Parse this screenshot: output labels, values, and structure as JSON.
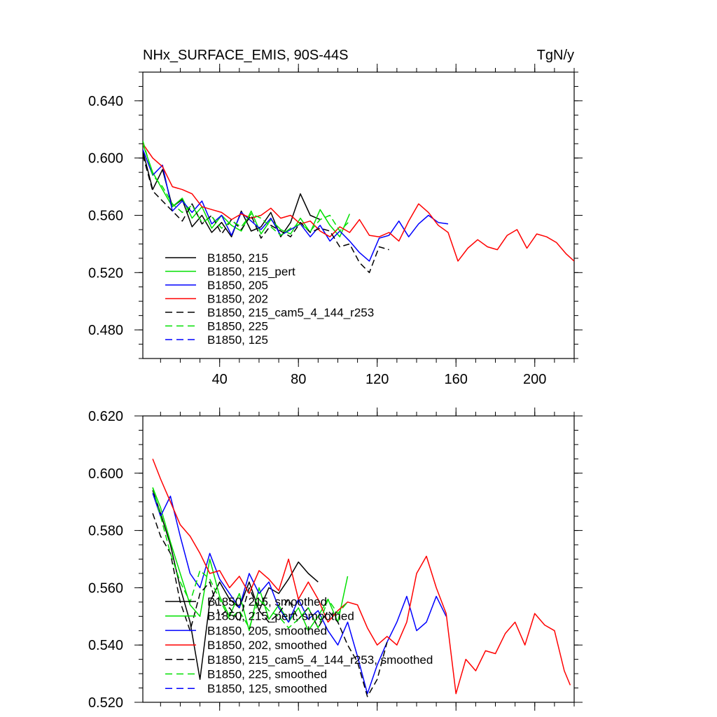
{
  "chart_data": [
    {
      "type": "line",
      "title": "NHx_SURFACE_EMIS, 90S-44S",
      "units": "TgN/y",
      "xlabel": "",
      "ylabel": "",
      "xlim": [
        1,
        220
      ],
      "ylim": [
        0.46,
        0.66
      ],
      "xticks": [
        40,
        80,
        120,
        160,
        200
      ],
      "xtick_labels": [
        "40",
        "80",
        "120",
        "160",
        "200"
      ],
      "yticks": [
        0.48,
        0.52,
        0.56,
        0.6,
        0.64
      ],
      "ytick_labels": [
        "0.480",
        "0.520",
        "0.560",
        "0.600",
        "0.640"
      ],
      "legend_position": "bottom-left",
      "series": [
        {
          "name": "B1850, 215",
          "color": "#000000",
          "dash": "solid",
          "x": [
            1,
            6,
            11,
            16,
            21,
            26,
            31,
            36,
            41,
            46,
            51,
            56,
            61,
            66,
            71,
            76,
            81,
            86,
            91
          ],
          "values": [
            0.605,
            0.578,
            0.592,
            0.566,
            0.571,
            0.552,
            0.56,
            0.548,
            0.555,
            0.545,
            0.563,
            0.549,
            0.552,
            0.562,
            0.545,
            0.555,
            0.575,
            0.56,
            0.557
          ]
        },
        {
          "name": "B1850, 215_pert",
          "color": "#00e000",
          "dash": "solid",
          "x": [
            1,
            6,
            11,
            16,
            21,
            26,
            31,
            36,
            41,
            46,
            51,
            56,
            61,
            66,
            71,
            76,
            81,
            86,
            91,
            96,
            101,
            106
          ],
          "values": [
            0.61,
            0.59,
            0.578,
            0.566,
            0.572,
            0.558,
            0.566,
            0.551,
            0.56,
            0.553,
            0.549,
            0.563,
            0.547,
            0.557,
            0.55,
            0.547,
            0.558,
            0.548,
            0.564,
            0.553,
            0.545,
            0.561
          ]
        },
        {
          "name": "B1850, 205",
          "color": "#0000ff",
          "dash": "solid",
          "x": [
            1,
            6,
            11,
            16,
            21,
            26,
            31,
            36,
            41,
            46,
            51,
            56,
            61,
            66,
            71,
            76,
            81,
            86,
            91,
            96,
            101,
            106,
            111,
            116,
            121,
            126,
            131,
            136,
            141,
            146,
            151,
            156
          ],
          "values": [
            0.606,
            0.588,
            0.595,
            0.563,
            0.57,
            0.562,
            0.57,
            0.554,
            0.56,
            0.546,
            0.562,
            0.556,
            0.55,
            0.558,
            0.546,
            0.55,
            0.554,
            0.545,
            0.553,
            0.542,
            0.549,
            0.542,
            0.534,
            0.528,
            0.544,
            0.546,
            0.556,
            0.545,
            0.554,
            0.56,
            0.555,
            0.554
          ]
        },
        {
          "name": "B1850, 202",
          "color": "#ff0000",
          "dash": "solid",
          "x": [
            1,
            6,
            11,
            16,
            21,
            26,
            31,
            36,
            41,
            46,
            51,
            56,
            61,
            66,
            71,
            76,
            81,
            86,
            91,
            96,
            101,
            106,
            111,
            116,
            121,
            126,
            131,
            136,
            141,
            146,
            151,
            156,
            161,
            166,
            171,
            176,
            181,
            186,
            191,
            196,
            201,
            206,
            211,
            216,
            220
          ],
          "values": [
            0.61,
            0.6,
            0.594,
            0.58,
            0.578,
            0.575,
            0.566,
            0.564,
            0.562,
            0.557,
            0.561,
            0.558,
            0.56,
            0.565,
            0.558,
            0.56,
            0.554,
            0.556,
            0.549,
            0.545,
            0.552,
            0.548,
            0.557,
            0.546,
            0.545,
            0.548,
            0.542,
            0.556,
            0.568,
            0.562,
            0.553,
            0.548,
            0.528,
            0.537,
            0.543,
            0.538,
            0.536,
            0.546,
            0.55,
            0.537,
            0.547,
            0.545,
            0.541,
            0.533,
            0.528
          ]
        },
        {
          "name": "B1850, 215_cam5_4_144_r253",
          "color": "#000000",
          "dash": "dashed",
          "x": [
            1,
            6,
            11,
            16,
            21,
            26,
            31,
            36,
            41,
            46,
            51,
            56,
            61,
            66,
            71,
            76,
            81,
            86,
            91,
            96,
            101,
            106,
            111,
            116,
            121,
            126
          ],
          "values": [
            0.602,
            0.577,
            0.57,
            0.563,
            0.556,
            0.568,
            0.554,
            0.56,
            0.547,
            0.557,
            0.55,
            0.56,
            0.544,
            0.553,
            0.549,
            0.545,
            0.555,
            0.548,
            0.551,
            0.549,
            0.538,
            0.54,
            0.527,
            0.52,
            0.538,
            0.536
          ]
        },
        {
          "name": "B1850, 225",
          "color": "#00e000",
          "dash": "dashed",
          "x": [
            1,
            6,
            11,
            16,
            21,
            26,
            31,
            36,
            41,
            46,
            51,
            56,
            61,
            66,
            71,
            76,
            81,
            86,
            91,
            96,
            101,
            106
          ],
          "values": [
            0.612,
            0.588,
            0.58,
            0.568,
            0.562,
            0.567,
            0.555,
            0.559,
            0.551,
            0.556,
            0.552,
            0.561,
            0.558,
            0.552,
            0.546,
            0.551,
            0.554,
            0.549,
            0.557,
            0.56,
            0.549,
            0.556
          ]
        },
        {
          "name": "B1850, 125",
          "color": "#0000ff",
          "dash": "dashed",
          "x": [],
          "values": []
        }
      ]
    },
    {
      "type": "line",
      "title": "",
      "xlabel": "",
      "ylabel": "",
      "xlim": [
        1,
        220
      ],
      "ylim": [
        0.52,
        0.62
      ],
      "xticks": [
        40,
        80,
        120,
        160,
        200
      ],
      "xtick_labels": [],
      "yticks": [
        0.52,
        0.54,
        0.56,
        0.58,
        0.6,
        0.62
      ],
      "ytick_labels": [
        "0.520",
        "0.540",
        "0.560",
        "0.580",
        "0.600",
        "0.620"
      ],
      "legend_position": "bottom-left",
      "series": [
        {
          "name": "B1850, 215, smoothed",
          "color": "#000000",
          "dash": "solid",
          "x": [
            6,
            10,
            15,
            20,
            25,
            30,
            35,
            40,
            45,
            50,
            55,
            60,
            65,
            70,
            75,
            80,
            85,
            90
          ],
          "values": [
            0.594,
            0.586,
            0.575,
            0.56,
            0.548,
            0.528,
            0.555,
            0.562,
            0.556,
            0.553,
            0.562,
            0.552,
            0.56,
            0.558,
            0.563,
            0.569,
            0.565,
            0.562
          ]
        },
        {
          "name": "B1850, 215_pert, smoothed",
          "color": "#00e000",
          "dash": "solid",
          "x": [
            6,
            10,
            15,
            20,
            25,
            30,
            35,
            40,
            45,
            50,
            55,
            60,
            65,
            70,
            75,
            80,
            85,
            90,
            95,
            100,
            105
          ],
          "values": [
            0.595,
            0.588,
            0.576,
            0.565,
            0.554,
            0.55,
            0.57,
            0.557,
            0.55,
            0.558,
            0.545,
            0.56,
            0.549,
            0.554,
            0.548,
            0.553,
            0.545,
            0.55,
            0.556,
            0.548,
            0.564
          ]
        },
        {
          "name": "B1850, 205, smoothed",
          "color": "#0000ff",
          "dash": "solid",
          "x": [
            6,
            10,
            15,
            20,
            25,
            30,
            35,
            40,
            45,
            50,
            55,
            60,
            65,
            70,
            75,
            80,
            85,
            90,
            95,
            100,
            105,
            110,
            115,
            120,
            125,
            130,
            135,
            140,
            145,
            150,
            155
          ],
          "values": [
            0.593,
            0.585,
            0.592,
            0.578,
            0.565,
            0.56,
            0.572,
            0.563,
            0.558,
            0.553,
            0.565,
            0.558,
            0.562,
            0.553,
            0.548,
            0.556,
            0.549,
            0.552,
            0.545,
            0.54,
            0.548,
            0.536,
            0.523,
            0.533,
            0.541,
            0.548,
            0.557,
            0.545,
            0.548,
            0.557,
            0.55
          ]
        },
        {
          "name": "B1850, 202, smoothed",
          "color": "#ff0000",
          "dash": "solid",
          "x": [
            6,
            10,
            15,
            20,
            25,
            30,
            35,
            40,
            45,
            50,
            55,
            60,
            65,
            70,
            75,
            80,
            85,
            90,
            95,
            100,
            105,
            110,
            115,
            120,
            125,
            130,
            135,
            140,
            145,
            150,
            155,
            160,
            165,
            170,
            175,
            180,
            185,
            190,
            195,
            200,
            205,
            210,
            215,
            218
          ],
          "values": [
            0.605,
            0.598,
            0.59,
            0.582,
            0.578,
            0.572,
            0.565,
            0.566,
            0.56,
            0.564,
            0.558,
            0.566,
            0.563,
            0.559,
            0.57,
            0.556,
            0.562,
            0.556,
            0.548,
            0.552,
            0.555,
            0.554,
            0.546,
            0.54,
            0.543,
            0.54,
            0.548,
            0.565,
            0.571,
            0.56,
            0.551,
            0.523,
            0.535,
            0.531,
            0.538,
            0.537,
            0.544,
            0.548,
            0.54,
            0.551,
            0.547,
            0.545,
            0.531,
            0.526
          ]
        },
        {
          "name": "B1850, 215_cam5_4_144_r253, smoothed",
          "color": "#000000",
          "dash": "dashed",
          "x": [
            6,
            10,
            15,
            20,
            25,
            30,
            35,
            40,
            45,
            50,
            55,
            60,
            65,
            70,
            75,
            80,
            85,
            90,
            95,
            100,
            105,
            110,
            115,
            120,
            125
          ],
          "values": [
            0.586,
            0.578,
            0.572,
            0.555,
            0.545,
            0.558,
            0.562,
            0.55,
            0.553,
            0.548,
            0.56,
            0.552,
            0.548,
            0.551,
            0.556,
            0.549,
            0.553,
            0.546,
            0.552,
            0.548,
            0.54,
            0.534,
            0.522,
            0.528,
            0.541
          ]
        },
        {
          "name": "B1850, 225, smoothed",
          "color": "#00e000",
          "dash": "dashed",
          "x": [
            6,
            10,
            15,
            20,
            25,
            30,
            35,
            40,
            45,
            50,
            55,
            60,
            65,
            70,
            75,
            80,
            85,
            90,
            95,
            100,
            105
          ],
          "values": [
            0.595,
            0.585,
            0.572,
            0.562,
            0.555,
            0.566,
            0.563,
            0.556,
            0.549,
            0.552,
            0.546,
            0.556,
            0.552,
            0.55,
            0.546,
            0.549,
            0.553,
            0.546,
            0.556,
            0.551,
            0.555
          ]
        },
        {
          "name": "B1850, 125, smoothed",
          "color": "#0000ff",
          "dash": "dashed",
          "x": [],
          "values": []
        }
      ]
    }
  ]
}
